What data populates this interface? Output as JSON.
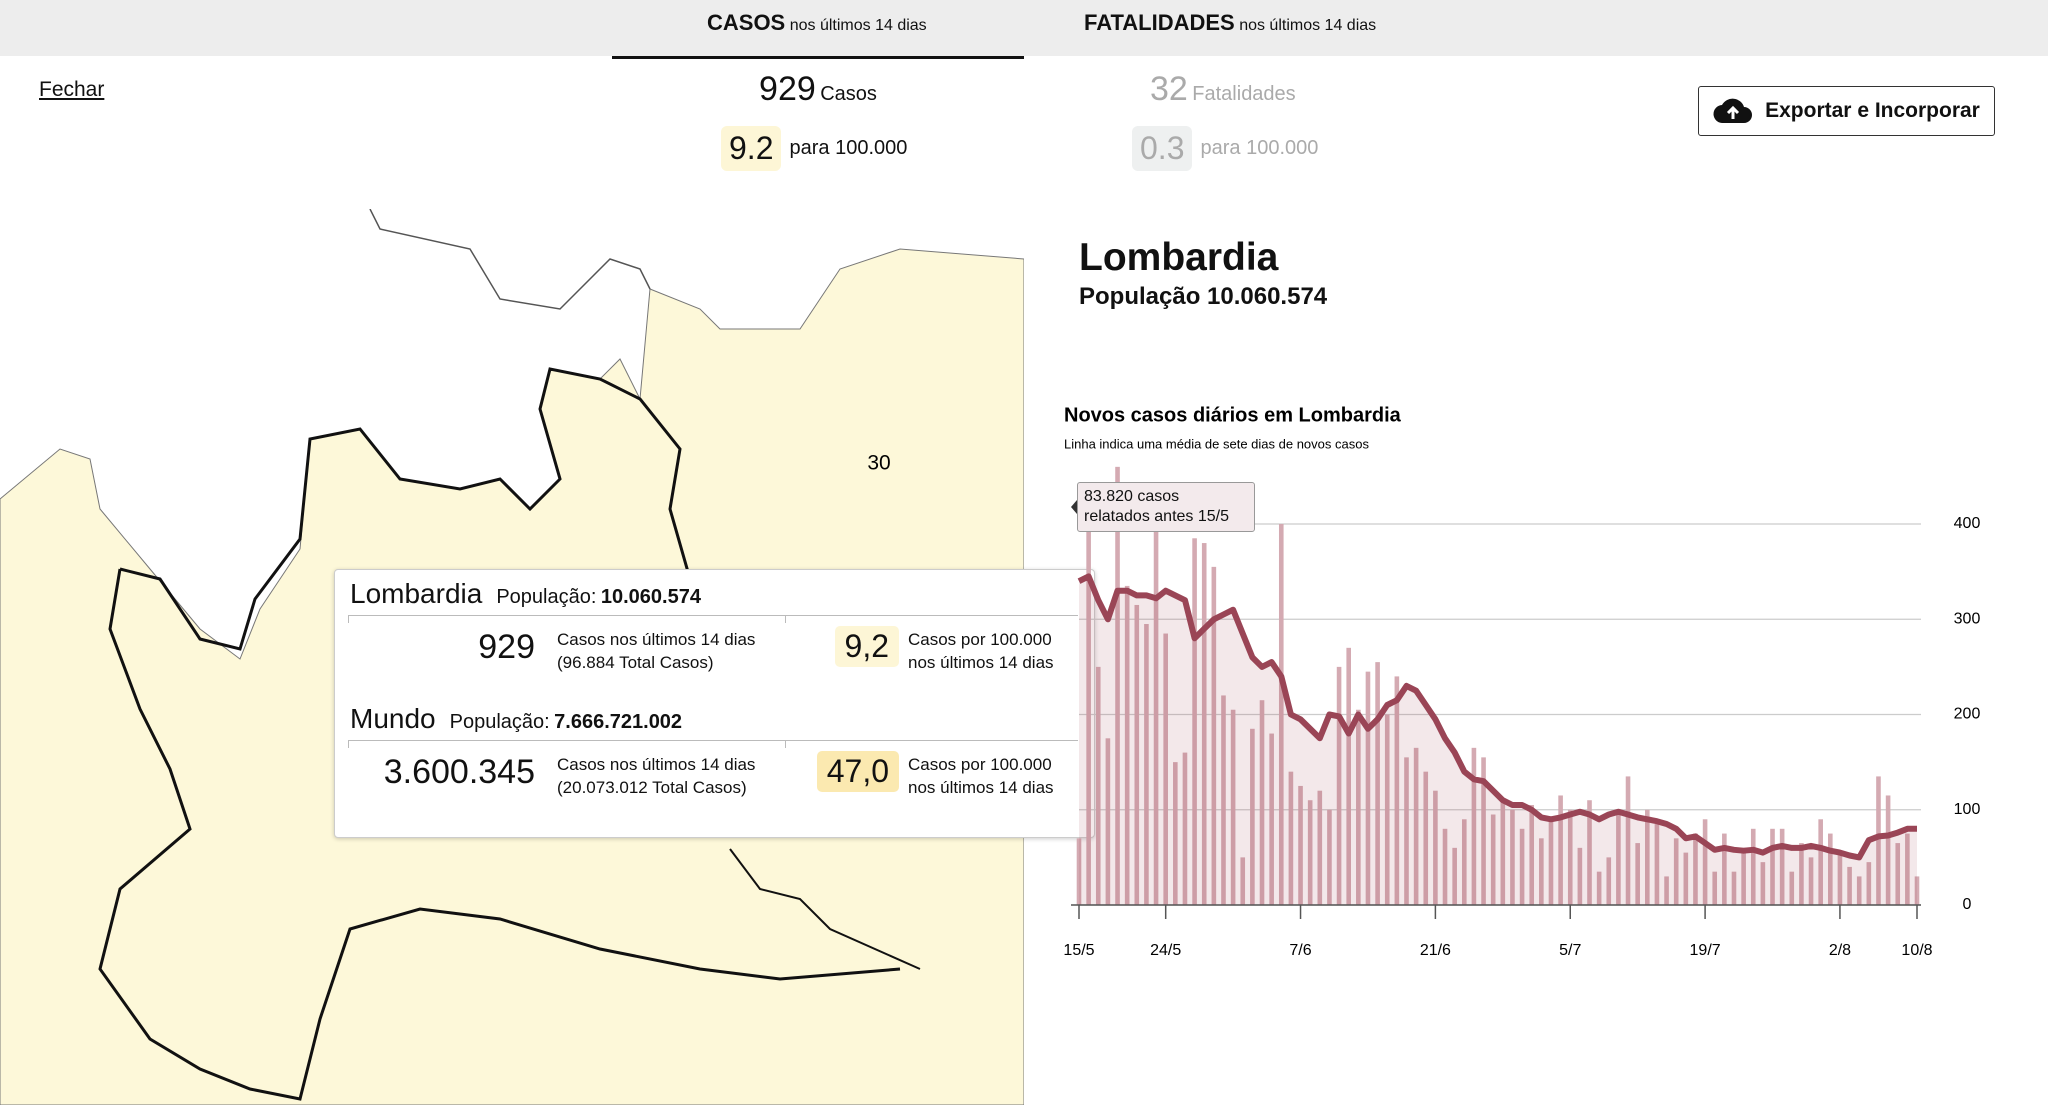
{
  "tabs": [
    {
      "title": "CASOS",
      "subtitle": "nos últimos 14 dias"
    },
    {
      "title": "FATALIDADES",
      "subtitle": "nos últimos 14 dias"
    }
  ],
  "close": "Fechar",
  "cases_summary": {
    "count": "929",
    "unit": "Casos",
    "rate": "9.2",
    "rate_unit": "para 100.000"
  },
  "deaths_summary": {
    "count": "32",
    "unit": "Fatalidades",
    "rate": "0.3",
    "rate_unit": "para 100.000"
  },
  "export_button": "Exportar e Incorporar",
  "map": {
    "label": "30"
  },
  "popup": {
    "rows": [
      {
        "name": "Lombardia",
        "population_label": "População:",
        "population": "10.060.574",
        "count": "929",
        "count_label": "Casos nos últimos 14 dias",
        "total": "(96.884 Total Casos)",
        "rate": "9,2",
        "rate_label": "Casos por 100.000 nos últimos 14 dias"
      },
      {
        "name": "Mundo",
        "population_label": "População:",
        "population": "7.666.721.002",
        "count": "3.600.345",
        "count_label": "Casos nos últimos 14 dias",
        "total": "(20.073.012 Total Casos)",
        "rate": "47,0",
        "rate_label": "Casos por 100.000 nos últimos 14 dias"
      }
    ]
  },
  "region": {
    "name": "Lombardia",
    "population": "População 10.060.574"
  },
  "chart_data": {
    "type": "bar",
    "title": "Novos casos diários em Lombardia",
    "subtitle": "Linha indica uma média de sete dias de novos casos",
    "annotation": "83.820 casos relatados antes 15/5",
    "categories": [
      "15/5",
      null,
      null,
      null,
      null,
      null,
      null,
      null,
      null,
      "24/5",
      null,
      null,
      null,
      null,
      null,
      null,
      null,
      null,
      null,
      null,
      null,
      null,
      null,
      "7/6",
      null,
      null,
      null,
      null,
      null,
      null,
      null,
      null,
      null,
      null,
      null,
      null,
      null,
      "21/6",
      null,
      null,
      null,
      null,
      null,
      null,
      null,
      null,
      null,
      null,
      null,
      null,
      null,
      "5/7",
      null,
      null,
      null,
      null,
      null,
      null,
      null,
      null,
      null,
      null,
      null,
      null,
      null,
      "19/7",
      null,
      null,
      null,
      null,
      null,
      null,
      null,
      null,
      null,
      null,
      null,
      null,
      null,
      "2/8",
      null,
      null,
      null,
      null,
      null,
      null,
      null,
      "10/8"
    ],
    "series": [
      {
        "type": "bar",
        "color": "#d4aab2",
        "values": [
          70,
          400,
          250,
          175,
          460,
          335,
          315,
          295,
          400,
          285,
          150,
          160,
          385,
          380,
          355,
          220,
          205,
          50,
          185,
          215,
          180,
          400,
          140,
          125,
          110,
          120,
          100,
          250,
          270,
          205,
          245,
          255,
          200,
          240,
          155,
          165,
          140,
          120,
          80,
          60,
          90,
          165,
          155,
          95,
          110,
          100,
          80,
          105,
          70,
          90,
          115,
          100,
          60,
          110,
          35,
          50,
          100,
          135,
          65,
          100,
          85,
          30,
          70,
          55,
          75,
          90,
          35,
          75,
          35,
          60,
          80,
          45,
          80,
          80,
          35,
          65,
          50,
          90,
          75,
          55,
          40,
          30,
          45,
          135,
          115,
          65,
          75,
          30
        ]
      },
      {
        "type": "line",
        "color": "#9a4556",
        "values": [
          340,
          345,
          320,
          300,
          330,
          330,
          325,
          325,
          322,
          330,
          325,
          320,
          280,
          290,
          300,
          305,
          310,
          285,
          260,
          250,
          255,
          240,
          200,
          195,
          185,
          175,
          200,
          198,
          180,
          200,
          185,
          195,
          210,
          215,
          230,
          225,
          210,
          195,
          175,
          160,
          140,
          132,
          130,
          120,
          110,
          105,
          105,
          100,
          92,
          90,
          92,
          95,
          98,
          95,
          90,
          95,
          98,
          95,
          92,
          90,
          88,
          85,
          80,
          70,
          72,
          65,
          58,
          60,
          58,
          57,
          58,
          55,
          60,
          62,
          60,
          60,
          62,
          60,
          57,
          55,
          52,
          50,
          68,
          72,
          73,
          76,
          80,
          80
        ]
      }
    ],
    "ylim": [
      0,
      460
    ],
    "yticks": [
      0,
      100,
      200,
      300,
      400
    ],
    "grid": true
  }
}
